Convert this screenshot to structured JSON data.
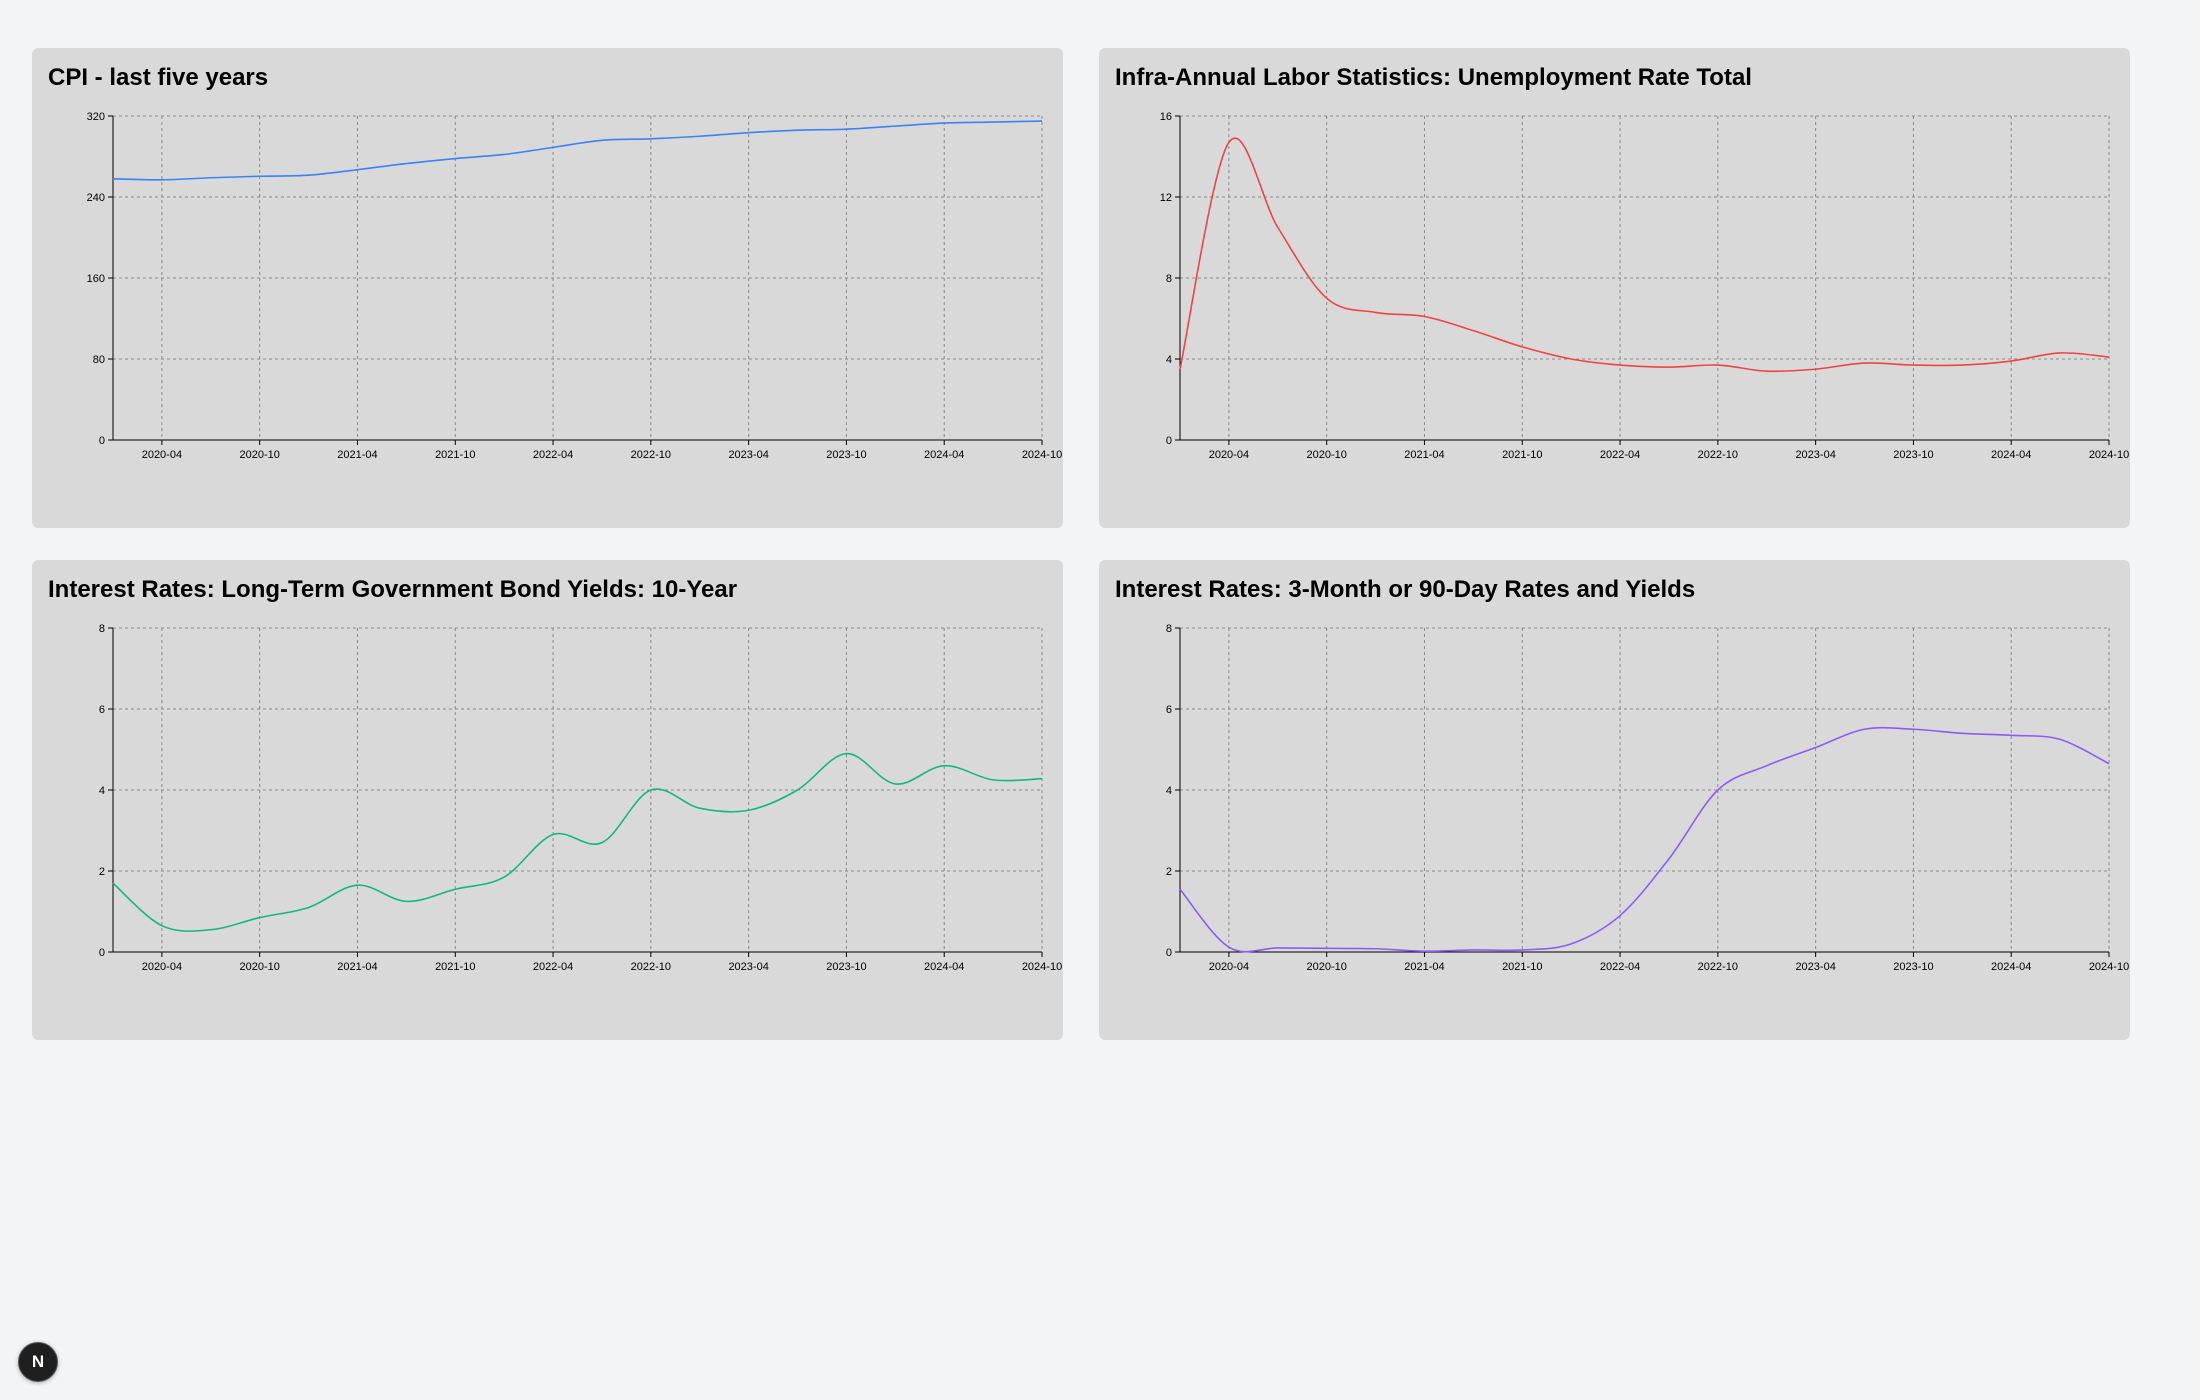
{
  "chart_data": [
    {
      "type": "line",
      "title": "CPI - last five years",
      "color": "#3b82f6",
      "ylim": [
        0,
        320
      ],
      "yticks": [
        0,
        80,
        160,
        240,
        320
      ],
      "xlim": [
        "2020-01",
        "2024-10"
      ],
      "xticks": [
        "2020-04",
        "2020-10",
        "2021-04",
        "2021-10",
        "2022-04",
        "2022-10",
        "2023-04",
        "2023-10",
        "2024-04",
        "2024-10"
      ],
      "grid": true,
      "x": [
        "2020-01",
        "2020-04",
        "2020-07",
        "2020-10",
        "2021-01",
        "2021-04",
        "2021-07",
        "2021-10",
        "2022-01",
        "2022-04",
        "2022-07",
        "2022-10",
        "2023-01",
        "2023-04",
        "2023-07",
        "2023-10",
        "2024-01",
        "2024-04",
        "2024-07",
        "2024-10"
      ],
      "values": [
        258,
        257,
        259,
        260.5,
        261.5,
        267,
        273,
        278,
        282,
        289,
        296,
        297.5,
        300,
        303.5,
        306,
        307,
        310,
        313,
        314,
        315
      ]
    },
    {
      "type": "line",
      "title": "Infra-Annual Labor Statistics: Unemployment Rate Total",
      "color": "#ef4444",
      "ylim": [
        0,
        16
      ],
      "yticks": [
        0,
        4,
        8,
        12,
        16
      ],
      "xlim": [
        "2020-01",
        "2024-10"
      ],
      "xticks": [
        "2020-04",
        "2020-10",
        "2021-04",
        "2021-10",
        "2022-04",
        "2022-10",
        "2023-04",
        "2023-10",
        "2024-04",
        "2024-10"
      ],
      "grid": true,
      "x": [
        "2020-01",
        "2020-04",
        "2020-07",
        "2020-10",
        "2021-01",
        "2021-04",
        "2021-07",
        "2021-10",
        "2022-01",
        "2022-04",
        "2022-07",
        "2022-10",
        "2023-01",
        "2023-04",
        "2023-07",
        "2023-10",
        "2024-01",
        "2024-04",
        "2024-07",
        "2024-10"
      ],
      "values": [
        3.5,
        14.7,
        10.5,
        7.0,
        6.3,
        6.1,
        5.4,
        4.6,
        4.0,
        3.7,
        3.6,
        3.7,
        3.4,
        3.5,
        3.8,
        3.7,
        3.7,
        3.9,
        4.3,
        4.1
      ]
    },
    {
      "type": "line",
      "title": "Interest Rates: Long-Term Government Bond Yields: 10-Year",
      "color": "#10b981",
      "ylim": [
        0,
        8
      ],
      "yticks": [
        0,
        2,
        4,
        6,
        8
      ],
      "xlim": [
        "2020-01",
        "2024-10"
      ],
      "xticks": [
        "2020-04",
        "2020-10",
        "2021-04",
        "2021-10",
        "2022-04",
        "2022-10",
        "2023-04",
        "2023-10",
        "2024-04",
        "2024-10"
      ],
      "grid": true,
      "x": [
        "2020-01",
        "2020-04",
        "2020-07",
        "2020-10",
        "2021-01",
        "2021-04",
        "2021-07",
        "2021-10",
        "2022-01",
        "2022-04",
        "2022-07",
        "2022-10",
        "2023-01",
        "2023-04",
        "2023-07",
        "2023-10",
        "2024-01",
        "2024-04",
        "2024-07",
        "2024-10"
      ],
      "values": [
        1.7,
        0.65,
        0.55,
        0.85,
        1.1,
        1.65,
        1.25,
        1.55,
        1.85,
        2.9,
        2.7,
        4.0,
        3.55,
        3.5,
        4.0,
        4.9,
        4.15,
        4.6,
        4.25,
        4.28
      ]
    },
    {
      "type": "line",
      "title": "Interest Rates: 3-Month or 90-Day Rates and Yields",
      "color": "#8b5cf6",
      "ylim": [
        0,
        8
      ],
      "yticks": [
        0,
        2,
        4,
        6,
        8
      ],
      "xlim": [
        "2020-01",
        "2024-10"
      ],
      "xticks": [
        "2020-04",
        "2020-10",
        "2021-04",
        "2021-10",
        "2022-04",
        "2022-10",
        "2023-04",
        "2023-10",
        "2024-04",
        "2024-10"
      ],
      "grid": true,
      "x": [
        "2020-01",
        "2020-04",
        "2020-07",
        "2020-10",
        "2021-01",
        "2021-04",
        "2021-07",
        "2021-10",
        "2022-01",
        "2022-04",
        "2022-07",
        "2022-10",
        "2023-01",
        "2023-04",
        "2023-07",
        "2023-10",
        "2024-01",
        "2024-04",
        "2024-07",
        "2024-10"
      ],
      "values": [
        1.55,
        0.12,
        0.1,
        0.09,
        0.08,
        0.02,
        0.05,
        0.05,
        0.2,
        0.9,
        2.3,
        4.0,
        4.6,
        5.05,
        5.5,
        5.5,
        5.4,
        5.35,
        5.25,
        4.65
      ]
    }
  ],
  "badge": {
    "letter": "N"
  }
}
